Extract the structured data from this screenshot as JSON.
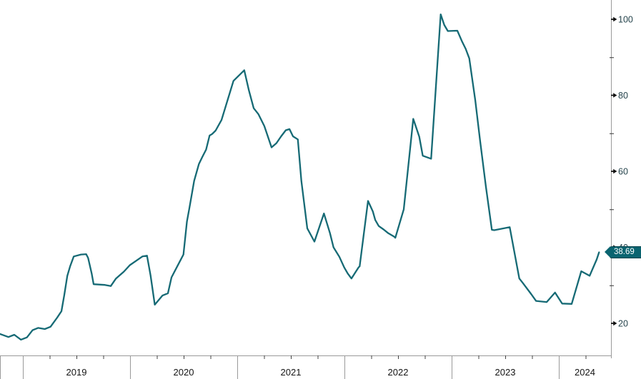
{
  "colors": {
    "background": "#ffffff",
    "line": "#166a75",
    "badge_bg": "#0a6470",
    "badge_border": "#07434c",
    "badge_text": "#ffffff",
    "y_label_text": "#27454d",
    "x_label_text": "#141414",
    "axis_line": "#9a9a9a",
    "year_tick": "#9a9a9a",
    "minor_tick": "#444444"
  },
  "chart_data": {
    "type": "line",
    "title": "",
    "xlabel": "",
    "ylabel": "",
    "legend": "none",
    "grid": "off",
    "x_axis": {
      "years": [
        "2019",
        "2020",
        "2021",
        "2022",
        "2023",
        "2024"
      ],
      "minor_tick_interval": "quarter"
    },
    "y_axis": {
      "side": "right",
      "labeled_ticks": [
        20,
        40,
        60,
        80,
        100
      ],
      "labeled_tick_texts": [
        "20",
        "40",
        "60",
        "80",
        "100"
      ],
      "minor_ticks": [
        30,
        50,
        70,
        90
      ],
      "range_shown": [
        12,
        104
      ]
    },
    "last_value": 38.69,
    "last_value_label": "38.69",
    "points": [
      [
        2018.787,
        17.2
      ],
      [
        2018.865,
        16.4
      ],
      [
        2018.92,
        17.0
      ],
      [
        2018.982,
        15.7
      ],
      [
        2019.038,
        16.3
      ],
      [
        2019.091,
        18.2
      ],
      [
        2019.142,
        18.8
      ],
      [
        2019.205,
        18.5
      ],
      [
        2019.258,
        19.1
      ],
      [
        2019.32,
        21.5
      ],
      [
        2019.36,
        23.2
      ],
      [
        2019.387,
        27.5
      ],
      [
        2019.415,
        32.5
      ],
      [
        2019.442,
        35.1
      ],
      [
        2019.475,
        37.6
      ],
      [
        2019.542,
        38.1
      ],
      [
        2019.591,
        38.2
      ],
      [
        2019.609,
        37.2
      ],
      [
        2019.642,
        33.1
      ],
      [
        2019.66,
        30.3
      ],
      [
        2019.765,
        30.1
      ],
      [
        2019.82,
        29.8
      ],
      [
        2019.869,
        31.8
      ],
      [
        2019.942,
        33.6
      ],
      [
        2019.998,
        35.3
      ],
      [
        2020.06,
        36.5
      ],
      [
        2020.115,
        37.6
      ],
      [
        2020.158,
        37.8
      ],
      [
        2020.191,
        32.6
      ],
      [
        2020.231,
        24.9
      ],
      [
        2020.302,
        27.3
      ],
      [
        2020.353,
        27.9
      ],
      [
        2020.387,
        32.1
      ],
      [
        2020.498,
        38.1
      ],
      [
        2020.531,
        46.8
      ],
      [
        2020.553,
        50.3
      ],
      [
        2020.598,
        57.5
      ],
      [
        2020.642,
        61.9
      ],
      [
        2020.675,
        63.8
      ],
      [
        2020.709,
        65.7
      ],
      [
        2020.742,
        69.4
      ],
      [
        2020.765,
        69.8
      ],
      [
        2020.798,
        70.7
      ],
      [
        2020.853,
        73.5
      ],
      [
        2020.965,
        83.8
      ],
      [
        2021.065,
        86.6
      ],
      [
        2021.109,
        81.3
      ],
      [
        2021.153,
        76.6
      ],
      [
        2021.198,
        75.0
      ],
      [
        2021.253,
        71.9
      ],
      [
        2021.32,
        66.3
      ],
      [
        2021.365,
        67.4
      ],
      [
        2021.409,
        69.2
      ],
      [
        2021.453,
        70.8
      ],
      [
        2021.487,
        71.1
      ],
      [
        2021.52,
        69.2
      ],
      [
        2021.565,
        68.4
      ],
      [
        2021.598,
        57.5
      ],
      [
        2021.653,
        45.0
      ],
      [
        2021.72,
        41.5
      ],
      [
        2021.809,
        48.9
      ],
      [
        2021.865,
        43.7
      ],
      [
        2021.898,
        40.0
      ],
      [
        2021.953,
        37.5
      ],
      [
        2021.998,
        34.7
      ],
      [
        2022.031,
        33.1
      ],
      [
        2022.065,
        31.8
      ],
      [
        2022.131,
        34.7
      ],
      [
        2022.142,
        35.0
      ],
      [
        2022.22,
        52.2
      ],
      [
        2022.265,
        49.4
      ],
      [
        2022.287,
        47.2
      ],
      [
        2022.32,
        45.6
      ],
      [
        2022.365,
        44.7
      ],
      [
        2022.409,
        43.7
      ],
      [
        2022.465,
        42.8
      ],
      [
        2022.475,
        42.5
      ],
      [
        2022.553,
        50.0
      ],
      [
        2022.642,
        73.8
      ],
      [
        2022.698,
        69.1
      ],
      [
        2022.731,
        64.1
      ],
      [
        2022.809,
        63.3
      ],
      [
        2022.898,
        101.3
      ],
      [
        2022.931,
        98.5
      ],
      [
        2022.965,
        96.9
      ],
      [
        2023.053,
        97.0
      ],
      [
        2023.098,
        94.1
      ],
      [
        2023.131,
        92.2
      ],
      [
        2023.165,
        89.7
      ],
      [
        2023.22,
        78.8
      ],
      [
        2023.265,
        68.1
      ],
      [
        2023.32,
        55.9
      ],
      [
        2023.375,
        44.6
      ],
      [
        2023.398,
        44.5
      ],
      [
        2023.542,
        45.3
      ],
      [
        2023.631,
        31.8
      ],
      [
        2023.665,
        30.6
      ],
      [
        2023.742,
        27.7
      ],
      [
        2023.787,
        25.9
      ],
      [
        2023.887,
        25.6
      ],
      [
        2023.965,
        28.1
      ],
      [
        2024.031,
        25.2
      ],
      [
        2024.12,
        25.1
      ],
      [
        2024.209,
        33.7
      ],
      [
        2024.287,
        32.5
      ],
      [
        2024.353,
        36.8
      ],
      [
        2024.375,
        38.69
      ]
    ]
  }
}
